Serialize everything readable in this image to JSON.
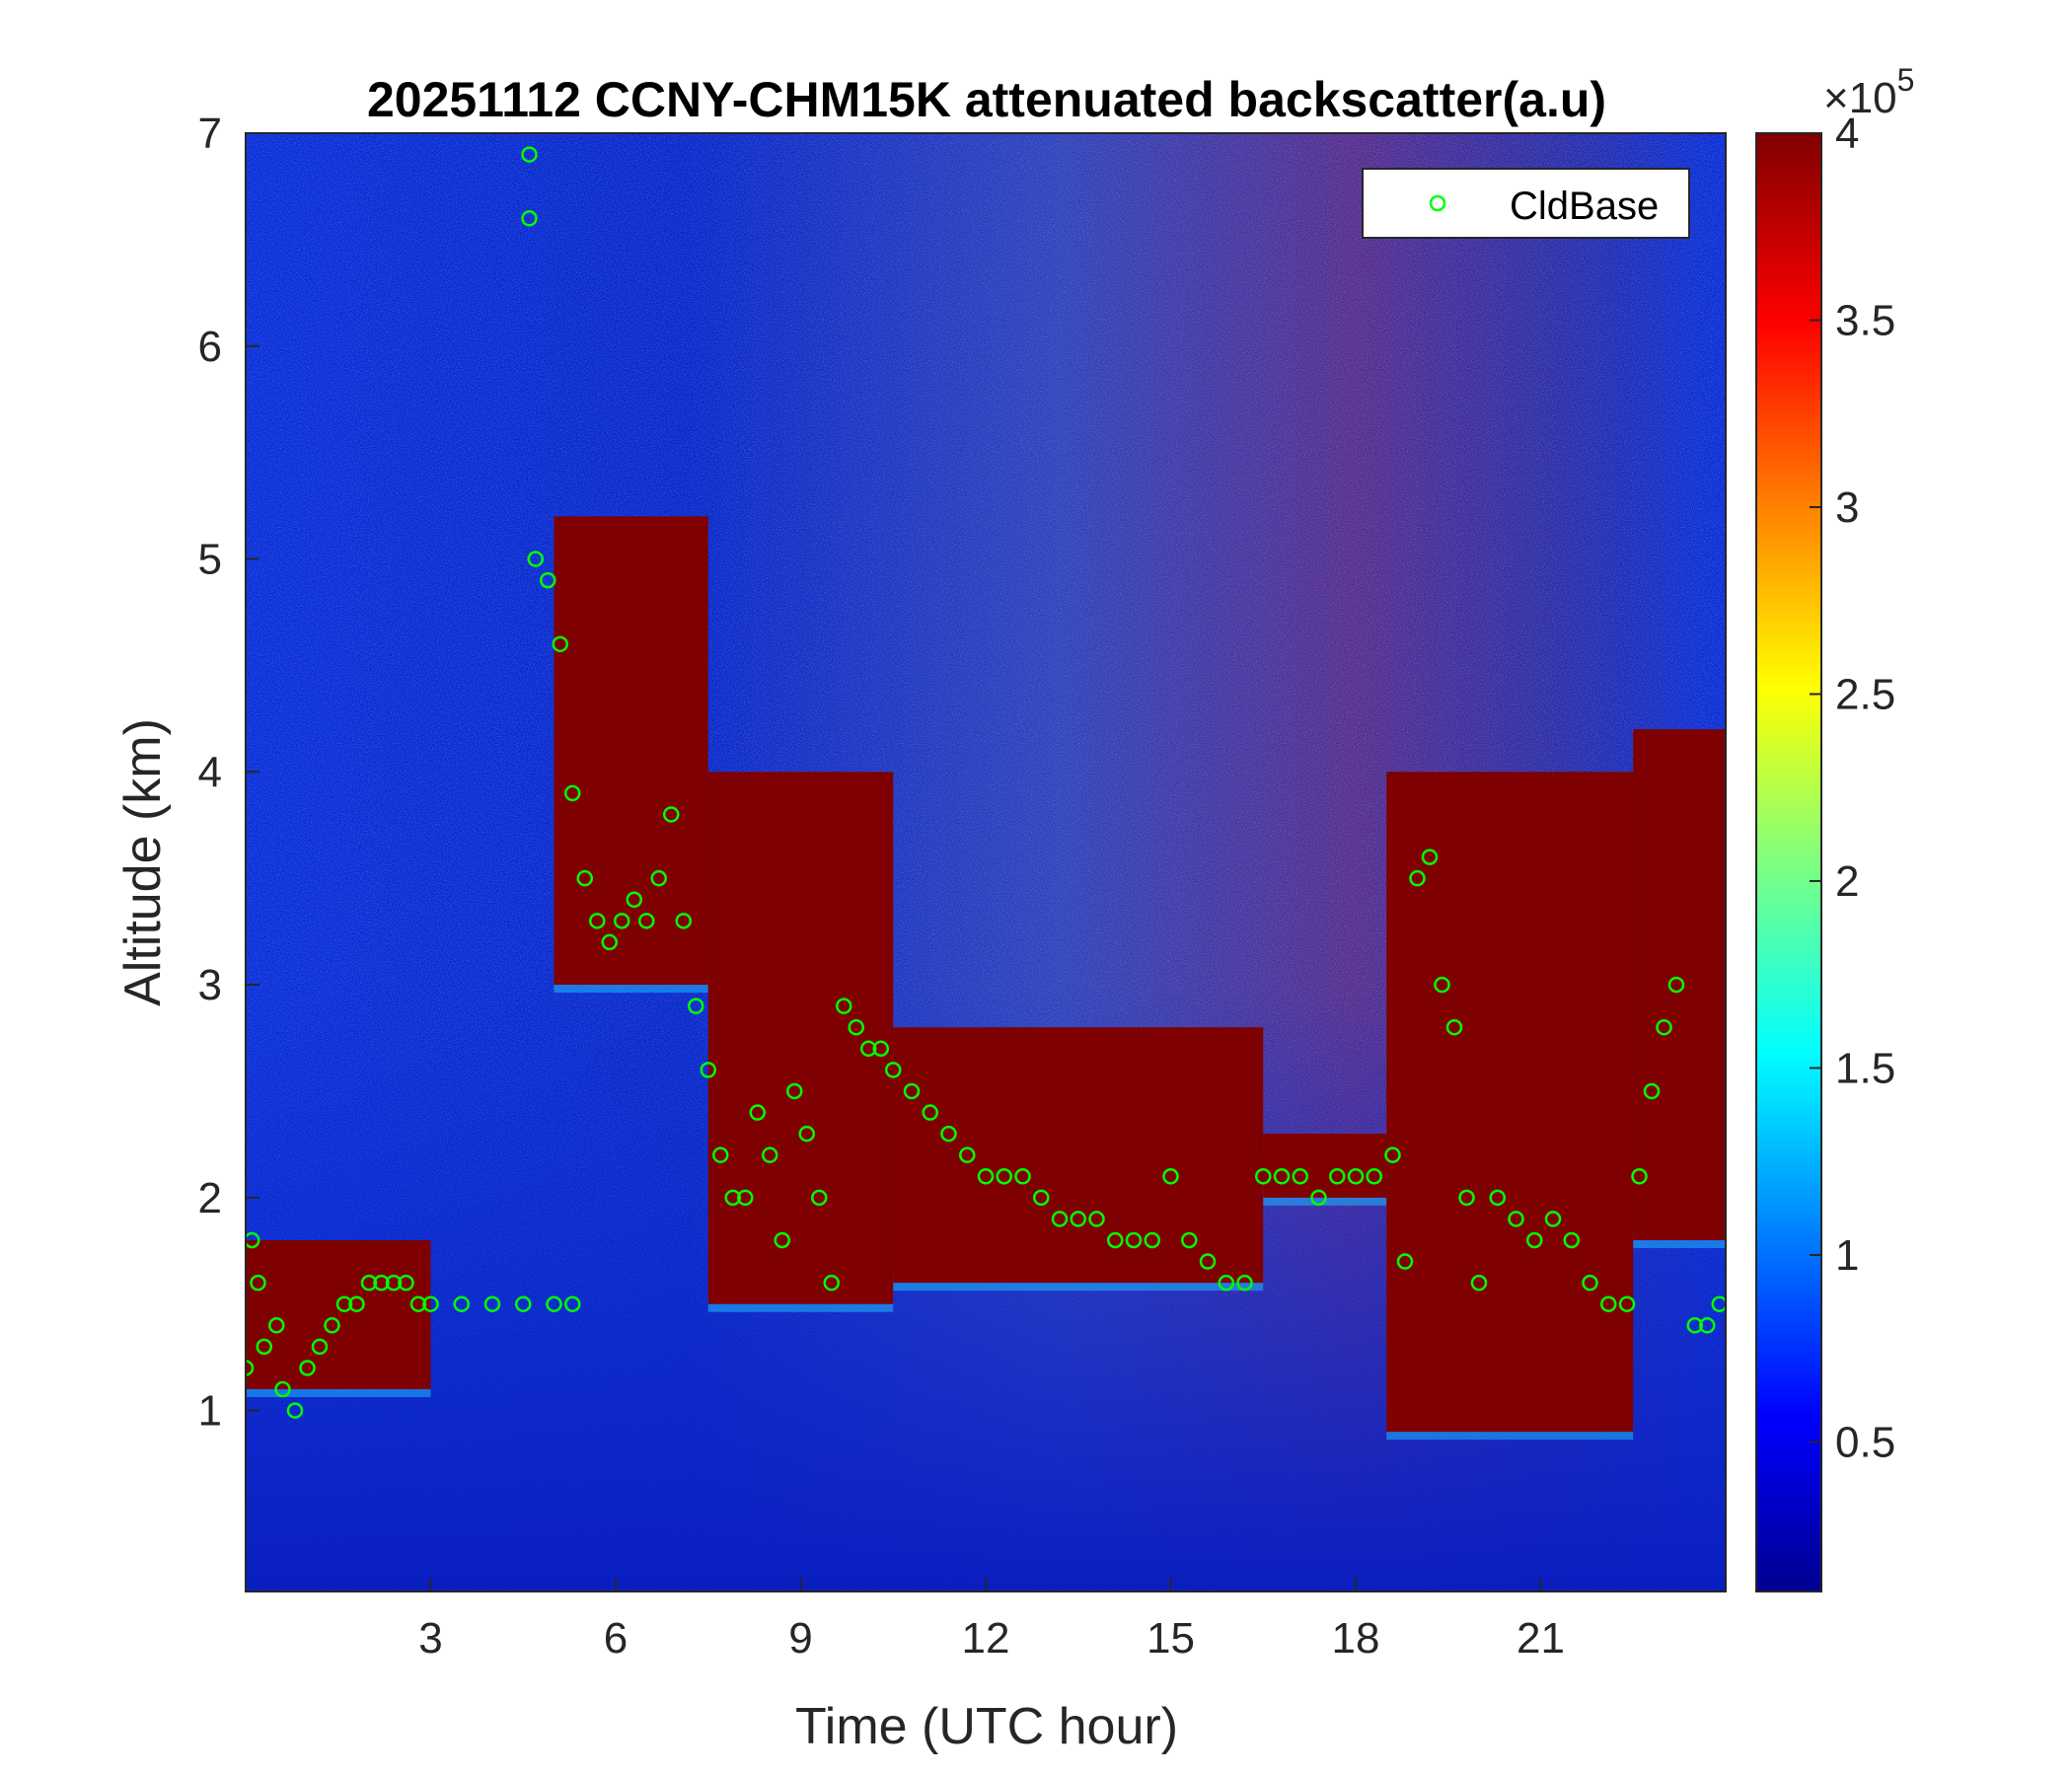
{
  "chart_data": {
    "type": "heatmap",
    "title": "20251112 CCNY-CHM15K attenuated backscatter(a.u)",
    "xlabel": "Time (UTC hour)",
    "ylabel": "Altitude (km)",
    "xlim": [
      0,
      24
    ],
    "ylim": [
      0.15,
      7
    ],
    "xticks": [
      3,
      6,
      9,
      12,
      15,
      18,
      21
    ],
    "yticks": [
      1,
      2,
      3,
      4,
      5,
      6,
      7
    ],
    "colorbar": {
      "min": 10000,
      "max": 400000,
      "ticks": [
        0.5,
        1,
        1.5,
        2,
        2.5,
        3,
        3.5,
        4
      ],
      "tick_labels": [
        "0.5",
        "1",
        "1.5",
        "2",
        "2.5",
        "3",
        "3.5",
        "4"
      ],
      "exponent_label": "×10",
      "exponent": "5",
      "colormap": "jet"
    },
    "legend": {
      "location": "top-right",
      "entries": [
        "CldBase"
      ]
    },
    "cloud_regions": [
      {
        "t_start": 0.0,
        "t_end": 3.0,
        "base_km": 1.1,
        "top_km": 1.8
      },
      {
        "t_start": 5.0,
        "t_end": 7.5,
        "base_km": 3.0,
        "top_km": 5.2
      },
      {
        "t_start": 7.5,
        "t_end": 10.5,
        "base_km": 1.5,
        "top_km": 4.0
      },
      {
        "t_start": 10.5,
        "t_end": 16.5,
        "base_km": 1.6,
        "top_km": 2.8
      },
      {
        "t_start": 16.5,
        "t_end": 18.5,
        "base_km": 2.0,
        "top_km": 2.3
      },
      {
        "t_start": 18.5,
        "t_end": 22.5,
        "base_km": 0.9,
        "top_km": 4.0
      },
      {
        "t_start": 22.5,
        "t_end": 24.0,
        "base_km": 1.8,
        "top_km": 4.2
      }
    ],
    "series": [
      {
        "name": "CldBase",
        "marker": "circle",
        "color": "#00ff00",
        "x": [
          0.0,
          0.1,
          0.2,
          0.3,
          0.5,
          0.6,
          0.8,
          1.0,
          1.2,
          1.4,
          1.6,
          1.8,
          2.0,
          2.2,
          2.4,
          2.6,
          2.8,
          3.0,
          3.5,
          4.0,
          4.5,
          5.0,
          5.3,
          4.6,
          4.6,
          4.7,
          4.9,
          5.1,
          5.3,
          5.5,
          5.7,
          5.9,
          6.1,
          6.3,
          6.5,
          6.7,
          6.9,
          7.1,
          7.3,
          7.5,
          7.7,
          7.9,
          8.1,
          8.3,
          8.5,
          8.7,
          8.9,
          9.1,
          9.3,
          9.5,
          9.7,
          9.9,
          10.1,
          10.3,
          10.5,
          10.8,
          11.1,
          11.4,
          11.7,
          12.0,
          12.3,
          12.6,
          12.9,
          13.2,
          13.5,
          13.8,
          14.1,
          14.4,
          14.7,
          15.0,
          15.3,
          15.6,
          15.9,
          16.2,
          16.5,
          16.8,
          17.1,
          17.4,
          17.7,
          18.0,
          18.3,
          18.6,
          18.8,
          19.0,
          19.2,
          19.4,
          19.6,
          19.8,
          20.0,
          20.3,
          20.6,
          20.9,
          21.2,
          21.5,
          21.8,
          22.1,
          22.4,
          22.6,
          22.8,
          23.0,
          23.2,
          23.5,
          23.7,
          23.9
        ],
        "y": [
          1.2,
          1.8,
          1.6,
          1.3,
          1.4,
          1.1,
          1.0,
          1.2,
          1.3,
          1.4,
          1.5,
          1.5,
          1.6,
          1.6,
          1.6,
          1.6,
          1.5,
          1.5,
          1.5,
          1.5,
          1.5,
          1.5,
          1.5,
          6.9,
          6.6,
          5.0,
          4.9,
          4.6,
          3.9,
          3.5,
          3.3,
          3.2,
          3.3,
          3.4,
          3.3,
          3.5,
          3.8,
          3.3,
          2.9,
          2.6,
          2.2,
          2.0,
          2.0,
          2.4,
          2.2,
          1.8,
          2.5,
          2.3,
          2.0,
          1.6,
          2.9,
          2.8,
          2.7,
          2.7,
          2.6,
          2.5,
          2.4,
          2.3,
          2.2,
          2.1,
          2.1,
          2.1,
          2.0,
          1.9,
          1.9,
          1.9,
          1.8,
          1.8,
          1.8,
          2.1,
          1.8,
          1.7,
          1.6,
          1.6,
          2.1,
          2.1,
          2.1,
          2.0,
          2.1,
          2.1,
          2.1,
          2.2,
          1.7,
          3.5,
          3.6,
          3.0,
          2.8,
          2.0,
          1.6,
          2.0,
          1.9,
          1.8,
          1.9,
          1.8,
          1.6,
          1.5,
          1.5,
          2.1,
          2.5,
          2.8,
          3.0,
          1.4,
          1.4,
          1.5
        ]
      }
    ]
  }
}
